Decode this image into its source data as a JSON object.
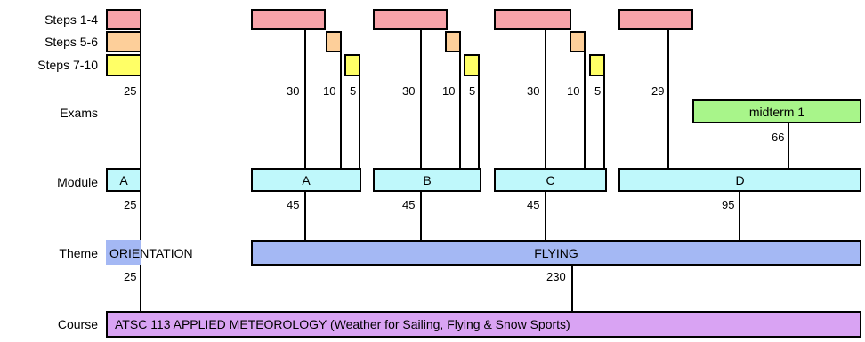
{
  "row_labels": {
    "steps_1_4": "Steps 1-4",
    "steps_5_6": "Steps 5-6",
    "steps_7_10": "Steps 7-10",
    "exams": "Exams",
    "module": "Module",
    "theme": "Theme",
    "course": "Course"
  },
  "modules": {
    "orientation": "A",
    "a": "A",
    "b": "B",
    "c": "C",
    "d": "D"
  },
  "exams": {
    "midterm": "midterm 1"
  },
  "themes": {
    "orientation": "ORIENTATION",
    "flying": "FLYING"
  },
  "course": {
    "title": "ATSC 113  APPLIED  METEOROLOGY  (Weather for Sailing, Flying & Snow Sports)"
  },
  "numbers": {
    "orient_steps": "25",
    "a_steps14": "30",
    "a_steps56": "10",
    "a_steps710": "5",
    "b_steps14": "30",
    "b_steps56": "10",
    "b_steps710": "5",
    "c_steps14": "30",
    "c_steps56": "10",
    "c_steps710": "5",
    "d_steps14": "29",
    "midterm": "66",
    "mod_orient": "25",
    "mod_a": "45",
    "mod_b": "45",
    "mod_c": "45",
    "mod_d": "95",
    "theme_orient": "25",
    "theme_flying": "230"
  },
  "colors": {
    "steps_1_4": "#f7a3a9",
    "steps_5_6": "#fdcf9a",
    "steps_7_10": "#ffff66",
    "module": "#bff8fb",
    "exam": "#a8f58a",
    "theme": "#a4b8f4",
    "course": "#d9a3f3"
  }
}
